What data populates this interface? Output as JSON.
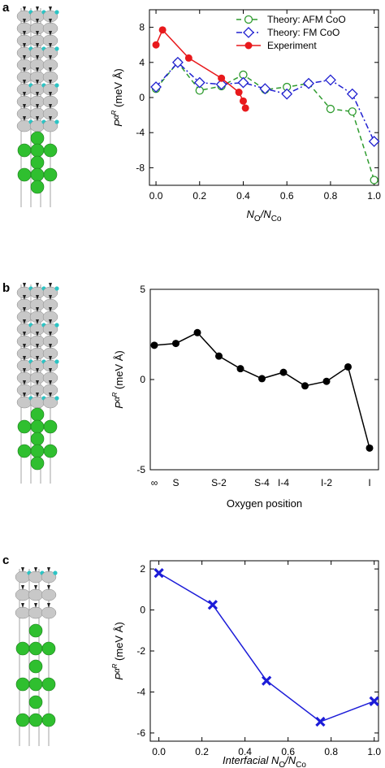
{
  "chart_data": [
    {
      "type": "line",
      "panel_label": "a",
      "ylabel": [
        "P",
        "α",
        "R",
        " (meV Å)"
      ],
      "xlabel": [
        "N",
        "O",
        "/N",
        "Co"
      ],
      "xlim": [
        -0.03,
        1.02
      ],
      "ylim": [
        -10,
        10
      ],
      "xticks": [
        {
          "value": 0,
          "label": "0.0"
        },
        0.2,
        0.4,
        0.6,
        0.8,
        {
          "value": 1,
          "label": "1.0"
        }
      ],
      "yticks": [
        -8,
        -4,
        0,
        4,
        8
      ],
      "legend": "upper right",
      "series": [
        {
          "name": "Theory: AFM CoO",
          "color": "#2e9b2e",
          "dash": "dashed",
          "marker": "circle-open",
          "x": [
            0,
            0.1,
            0.2,
            0.3,
            0.4,
            0.5,
            0.6,
            0.7,
            0.8,
            0.9,
            1.0
          ],
          "values": [
            1.0,
            4.0,
            0.8,
            1.3,
            2.6,
            0.9,
            1.2,
            1.6,
            -1.3,
            -1.6,
            -9.4
          ]
        },
        {
          "name": "Theory: FM CoO",
          "color": "#2020d0",
          "dash": "dashdot",
          "marker": "diamond-open",
          "x": [
            0,
            0.1,
            0.2,
            0.3,
            0.4,
            0.5,
            0.6,
            0.7,
            0.8,
            0.9,
            1.0
          ],
          "values": [
            1.2,
            4.0,
            1.7,
            1.5,
            1.7,
            1.0,
            0.4,
            1.6,
            2.0,
            0.4,
            -5.0
          ]
        },
        {
          "name": "Experiment",
          "color": "#e8191c",
          "dash": "solid",
          "marker": "circle",
          "x": [
            0,
            0.03,
            0.15,
            0.3,
            0.38,
            0.4,
            0.41
          ],
          "values": [
            6.0,
            7.7,
            4.5,
            2.2,
            0.6,
            -0.4,
            -1.2
          ]
        }
      ]
    },
    {
      "type": "line",
      "panel_label": "b",
      "ylabel": [
        "P",
        "α",
        "R",
        " (meV Å)"
      ],
      "xlabel": [
        "Oxygen position"
      ],
      "categories": [
        "∞",
        "S",
        null,
        "S-2",
        null,
        "S-4",
        "I-4",
        null,
        "I-2",
        null,
        "I"
      ],
      "ylim": [
        -5,
        5
      ],
      "yticks": [
        -5,
        0,
        5
      ],
      "series": [
        {
          "color": "#000000",
          "dash": "solid",
          "marker": "circle",
          "values": [
            1.9,
            2.0,
            2.6,
            1.3,
            0.6,
            0.05,
            0.4,
            -0.35,
            -0.1,
            0.7,
            -3.8
          ]
        }
      ]
    },
    {
      "type": "line",
      "panel_label": "c",
      "ylabel": [
        "P",
        "α",
        "R",
        " (meV Å)"
      ],
      "xlabel": [
        "Interfacial N",
        "O",
        "/N",
        "Co"
      ],
      "xlim": [
        -0.04,
        1.02
      ],
      "ylim": [
        -6.4,
        2.4
      ],
      "xticks": [
        {
          "value": 0,
          "label": "0.0"
        },
        0.2,
        0.4,
        0.6,
        0.8,
        {
          "value": 1,
          "label": "1.0"
        }
      ],
      "yticks": [
        -6,
        -4,
        -2,
        0,
        2
      ],
      "series": [
        {
          "color": "#1c1cd8",
          "dash": "solid",
          "marker": "x",
          "x": [
            0,
            0.25,
            0.5,
            0.75,
            1.0
          ],
          "values": [
            1.8,
            0.25,
            -3.45,
            -5.45,
            -4.45
          ]
        }
      ]
    }
  ]
}
